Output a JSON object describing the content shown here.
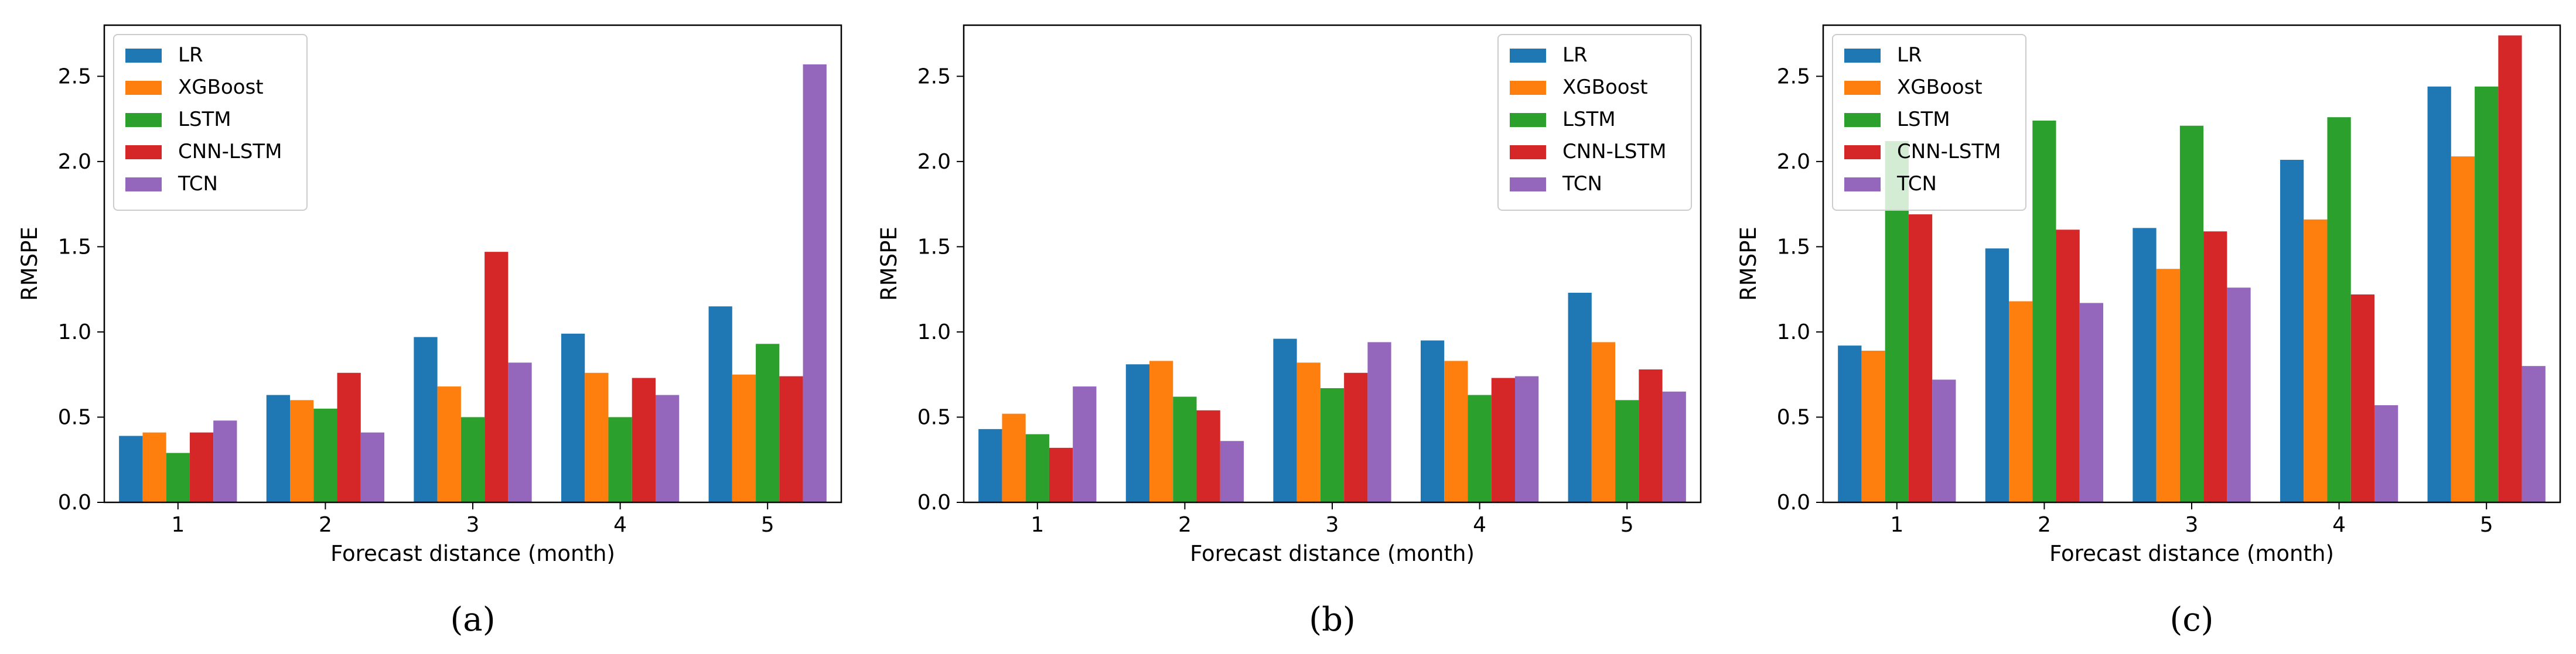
{
  "series_colors": {
    "LR": "#1f77b4",
    "XGBoost": "#ff7f0e",
    "LSTM": "#2ca02c",
    "CNN-LSTM": "#d62728",
    "TCN": "#9467bd"
  },
  "chart_data": [
    {
      "type": "bar",
      "panel": "(a)",
      "categories": [
        "1",
        "2",
        "3",
        "4",
        "5"
      ],
      "xlabel": "Forecast distance (month)",
      "ylabel": "RMSPE",
      "ylim": [
        0,
        2.8
      ],
      "yticks": [
        "0.0",
        "0.5",
        "1.0",
        "1.5",
        "2.0",
        "2.5"
      ],
      "legend_position": "top-left",
      "series": [
        {
          "name": "LR",
          "values": [
            0.39,
            0.63,
            0.97,
            0.99,
            1.15
          ]
        },
        {
          "name": "XGBoost",
          "values": [
            0.41,
            0.6,
            0.68,
            0.76,
            0.75
          ]
        },
        {
          "name": "LSTM",
          "values": [
            0.29,
            0.55,
            0.5,
            0.5,
            0.93
          ]
        },
        {
          "name": "CNN-LSTM",
          "values": [
            0.41,
            0.76,
            1.47,
            0.73,
            0.74
          ]
        },
        {
          "name": "TCN",
          "values": [
            0.48,
            0.41,
            0.82,
            0.63,
            2.57
          ]
        }
      ]
    },
    {
      "type": "bar",
      "panel": "(b)",
      "categories": [
        "1",
        "2",
        "3",
        "4",
        "5"
      ],
      "xlabel": "Forecast distance (month)",
      "ylabel": "RMSPE",
      "ylim": [
        0,
        2.8
      ],
      "yticks": [
        "0.0",
        "0.5",
        "1.0",
        "1.5",
        "2.0",
        "2.5"
      ],
      "legend_position": "top-right",
      "series": [
        {
          "name": "LR",
          "values": [
            0.43,
            0.81,
            0.96,
            0.95,
            1.23
          ]
        },
        {
          "name": "XGBoost",
          "values": [
            0.52,
            0.83,
            0.82,
            0.83,
            0.94
          ]
        },
        {
          "name": "LSTM",
          "values": [
            0.4,
            0.62,
            0.67,
            0.63,
            0.6
          ]
        },
        {
          "name": "CNN-LSTM",
          "values": [
            0.32,
            0.54,
            0.76,
            0.73,
            0.78
          ]
        },
        {
          "name": "TCN",
          "values": [
            0.68,
            0.36,
            0.94,
            0.74,
            0.65
          ]
        }
      ]
    },
    {
      "type": "bar",
      "panel": "(c)",
      "categories": [
        "1",
        "2",
        "3",
        "4",
        "5"
      ],
      "xlabel": "Forecast distance (month)",
      "ylabel": "RMSPE",
      "ylim": [
        0,
        2.8
      ],
      "yticks": [
        "0.0",
        "0.5",
        "1.0",
        "1.5",
        "2.0",
        "2.5"
      ],
      "legend_position": "top-left",
      "series": [
        {
          "name": "LR",
          "values": [
            0.92,
            1.49,
            1.61,
            2.01,
            2.44
          ]
        },
        {
          "name": "XGBoost",
          "values": [
            0.89,
            1.18,
            1.37,
            1.66,
            2.03
          ]
        },
        {
          "name": "LSTM",
          "values": [
            2.12,
            2.24,
            2.21,
            2.26,
            2.44
          ]
        },
        {
          "name": "CNN-LSTM",
          "values": [
            1.69,
            1.6,
            1.59,
            1.22,
            2.74
          ]
        },
        {
          "name": "TCN",
          "values": [
            0.72,
            1.17,
            1.26,
            0.57,
            0.8
          ]
        }
      ]
    }
  ]
}
